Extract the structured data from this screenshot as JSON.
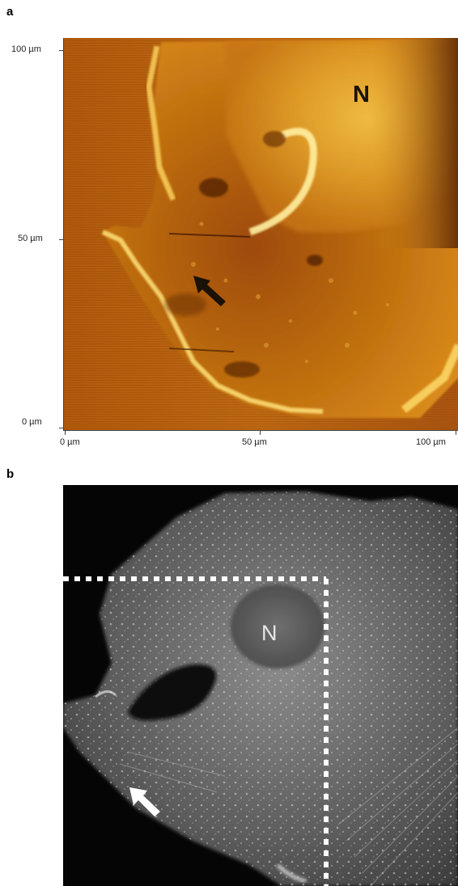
{
  "figure": {
    "panel_a": {
      "letter": "a",
      "y_ticks": [
        "100 µm",
        "50 µm",
        "0 µm"
      ],
      "x_ticks": [
        "0 µm",
        "50 µm",
        "100 µm"
      ],
      "nucleus_label": "N"
    },
    "panel_b": {
      "letter": "b",
      "nucleus_label": "N"
    }
  },
  "colors": {
    "afm_background": "#b8620f",
    "afm_cell_dark": "#6a3005",
    "afm_cell_bright": "#ffd23a",
    "fluo_background": "#050505",
    "fluo_cell": "#6a6a6a",
    "arrow_a": "#1a1206",
    "arrow_b": "#ffffff",
    "dotted_line": "#ffffff"
  }
}
